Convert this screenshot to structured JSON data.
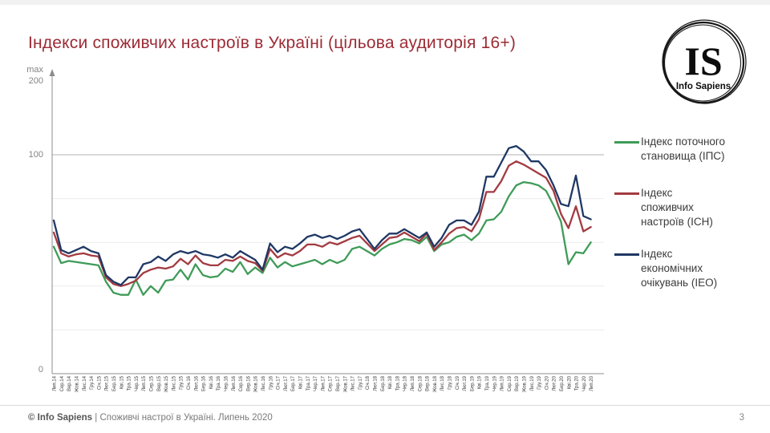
{
  "slide": {
    "title": "Індекси споживчих настроїв в Україні (цільова аудиторія 16+)"
  },
  "logo": {
    "monogram": "IS",
    "name": "Info Sapiens"
  },
  "axis": {
    "max_label": "max",
    "tick_200": "200",
    "tick_100": "100",
    "tick_0": "0"
  },
  "legend": {
    "items": [
      {
        "name": "ІПС",
        "color": "#3f9b58",
        "lines": [
          "Індекс поточного",
          "становища (ІПС)"
        ]
      },
      {
        "name": "ІСН",
        "color": "#a23b41",
        "lines": [
          "Індекс",
          "споживчих",
          "настроїв (ІСН)"
        ]
      },
      {
        "name": "ІЕО",
        "color": "#1f3864",
        "lines": [
          "Індекс",
          "економічних",
          "очікувань (ІЕО)"
        ]
      }
    ]
  },
  "footer": {
    "brand": "© Info Sapiens",
    "separator": "|",
    "caption": "Споживчі настрої в Україні. Липень 2020",
    "page": "3"
  },
  "colors": {
    "title": "#9c2b35",
    "axis": "#8c8c8c",
    "gridline_major": "#b3b3b3",
    "gridline_minor": "#ebebeb",
    "x_tick_text": "#404040",
    "ips_green": "#3f9b58",
    "isn_red": "#a23b41",
    "ieo_navy": "#1f3864"
  },
  "chart_data": {
    "type": "line",
    "title": "Індекси споживчих настроїв в Україні (цільова аудиторія 16+)",
    "ylim": [
      0,
      200
    ],
    "y_major_gridlines": [
      100
    ],
    "y_minor_gridlines": [
      20,
      40,
      60,
      80
    ],
    "grid": "on",
    "legend_position": "right",
    "x": [
      "Лип.14",
      "Сер.14",
      "Вер.14",
      "Жов.14",
      "Лис.14",
      "Гру.14",
      "Січ.15",
      "Лют.15",
      "Бер.15",
      "Кві.15",
      "Тра.15",
      "Чер.15",
      "Лип.15",
      "Сер.15",
      "Вер.15",
      "Жов.15",
      "Лис.15",
      "Гру.15",
      "Січ.16",
      "Лют.16",
      "Бер.16",
      "Кві.16",
      "Тра.16",
      "Чер.16",
      "Лип.16",
      "Сер.16",
      "Вер.16",
      "Жов.16",
      "Лис.16",
      "Гру.16",
      "Січ.17",
      "Лют.17",
      "Бер.17",
      "Кві.17",
      "Тра.17",
      "Чер.17",
      "Лип.17",
      "Сер.17",
      "Вер.17",
      "Жов.17",
      "Лис.17",
      "Гру.17",
      "Січ.18",
      "Лют.18",
      "Бер.18",
      "Кві.18",
      "Тра.18",
      "Чер.18",
      "Лип.18",
      "Сер.18",
      "Вер.18",
      "Жов.18",
      "Лис.18",
      "Гру.18",
      "Січ.19",
      "Лют.19",
      "Бер.19",
      "Кві.19",
      "Тра.19",
      "Чер.19",
      "Лип.19",
      "Сер.19",
      "Вер.19",
      "Жов.19",
      "Лис.19",
      "Гру.19",
      "Січ.20",
      "Лют.20",
      "Бер.20",
      "Кві.20",
      "Тра.20",
      "Чер.20",
      "Лип.20"
    ],
    "series": [
      {
        "name": "Індекс поточного становища (ІПС)",
        "color": "#3f9b58",
        "values": [
          58,
          50.5,
          51.5,
          51,
          50.5,
          50,
          49.5,
          42,
          37,
          36,
          36,
          43,
          36,
          40,
          37,
          42.5,
          43,
          47.5,
          43,
          50,
          45,
          44,
          44.5,
          48,
          46.5,
          51,
          45.5,
          48.5,
          46,
          53,
          48.5,
          51,
          49,
          50,
          51,
          52,
          50,
          52,
          50.5,
          52,
          57,
          58,
          56,
          54,
          57,
          59,
          60,
          61.5,
          61,
          59.5,
          62.5,
          56,
          59,
          60,
          62.5,
          63.5,
          61,
          64,
          70,
          70.5,
          74,
          81,
          86,
          87.5,
          87,
          86,
          83.5,
          77,
          69.5,
          50,
          55.5,
          55,
          60
        ]
      },
      {
        "name": "Індекс споживчих настроїв (ІСН)",
        "color": "#a23b41",
        "values": [
          64.5,
          55,
          53.5,
          54.5,
          55,
          54,
          53.5,
          44,
          41,
          40,
          41,
          42.5,
          46,
          47.5,
          48.5,
          48,
          49,
          52.5,
          50,
          54,
          50.5,
          49.5,
          49.5,
          52,
          51.5,
          53.5,
          51.5,
          50.5,
          47,
          57,
          53,
          55,
          54,
          56,
          59,
          59,
          58,
          60,
          59,
          60.5,
          62,
          63,
          59.5,
          56,
          59,
          62,
          62.5,
          64.5,
          62.5,
          60.5,
          64,
          56.5,
          60,
          64,
          66.5,
          67,
          65,
          70.5,
          83,
          83,
          88,
          95,
          97,
          95.5,
          93.5,
          91.5,
          89.5,
          83.5,
          73,
          66.5,
          76.5,
          65,
          67
        ]
      },
      {
        "name": "Індекс економічних очікувань (ІЕО)",
        "color": "#1f3864",
        "values": [
          70,
          56.5,
          55,
          56.5,
          58,
          56,
          55,
          45,
          42,
          40.5,
          44,
          44,
          50,
          51,
          53.5,
          51.5,
          54.5,
          56,
          55,
          56,
          54.5,
          54,
          53,
          54.5,
          53,
          56,
          54,
          52,
          47.5,
          59.5,
          55.5,
          58,
          57,
          59.5,
          62.5,
          63.5,
          62,
          63,
          61.5,
          63,
          65,
          66,
          61.5,
          57,
          61,
          64,
          64,
          66,
          64,
          62,
          64.5,
          58,
          62,
          68,
          70,
          70,
          68,
          74,
          90,
          90,
          96.5,
          103,
          104,
          101.5,
          97,
          97,
          93,
          86,
          77.5,
          76.5,
          90.5,
          72,
          70.5
        ]
      }
    ]
  }
}
